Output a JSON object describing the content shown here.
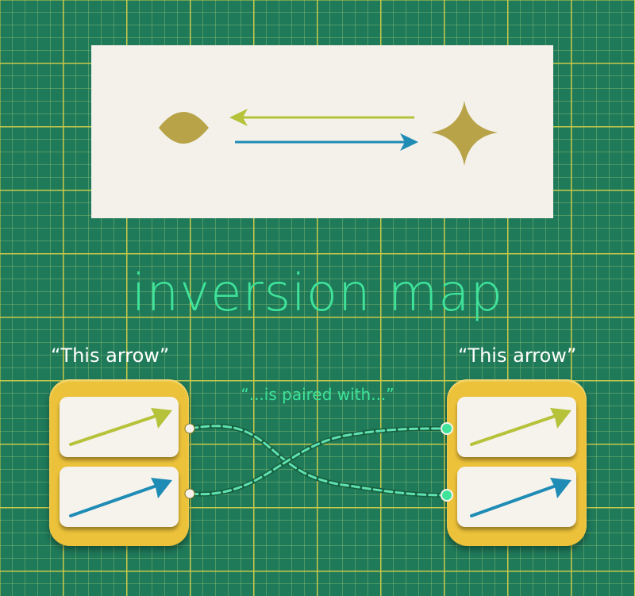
{
  "title": "inversion map",
  "left_caption": "“This arrow”",
  "right_caption": "“This arrow”",
  "middle_caption": "“...is paired with...”",
  "colors": {
    "grid_background": "#1f7a5a",
    "panel": "#f3f1ea",
    "shape_gold": "#b8a348",
    "arrow_olive": "#b5c23a",
    "arrow_blue": "#1f8cb5",
    "group_yellow": "#ecc23a",
    "title_green": "#3fe39a"
  },
  "icons": [
    "lens-shape",
    "four-point-star-shape",
    "olive-arrow",
    "blue-arrow"
  ]
}
